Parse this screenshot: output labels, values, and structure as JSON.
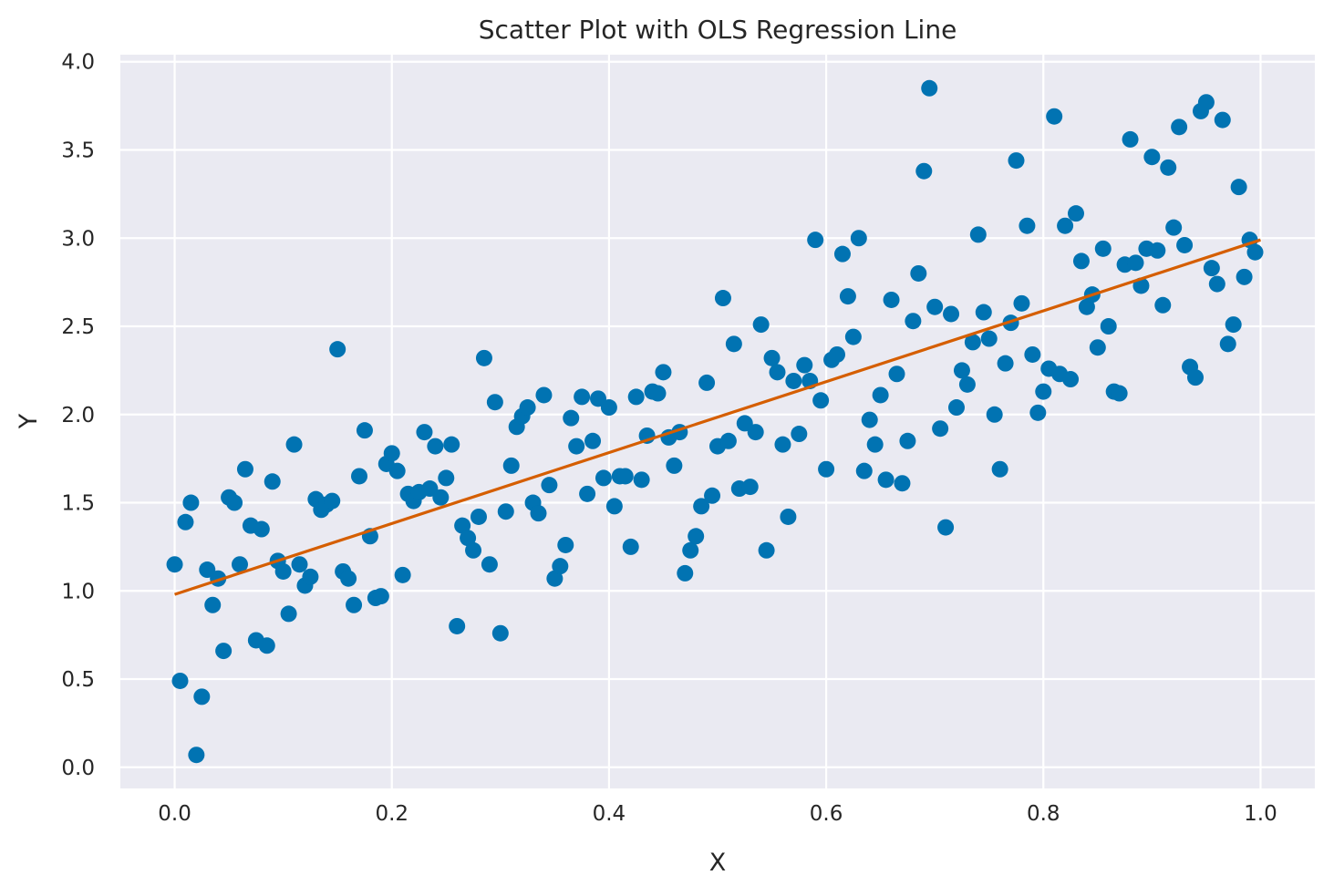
{
  "chart_data": {
    "type": "scatter",
    "title": "Scatter Plot with OLS Regression Line",
    "xlabel": "X",
    "ylabel": "Y",
    "xlim": [
      -0.05,
      1.05
    ],
    "ylim": [
      -0.12,
      4.04
    ],
    "xticks": [
      0.0,
      0.2,
      0.4,
      0.6,
      0.8,
      1.0
    ],
    "xtick_labels": [
      "0.0",
      "0.2",
      "0.4",
      "0.6",
      "0.8",
      "1.0"
    ],
    "yticks": [
      0.0,
      0.5,
      1.0,
      1.5,
      2.0,
      2.5,
      3.0,
      3.5,
      4.0
    ],
    "ytick_labels": [
      "0.0",
      "0.5",
      "1.0",
      "1.5",
      "2.0",
      "2.5",
      "3.0",
      "3.5",
      "4.0"
    ],
    "grid": true,
    "colors": {
      "points": "#0173b2",
      "line": "#d55e00",
      "background": "#eaeaf2",
      "grid": "#ffffff"
    },
    "points": [
      [
        0.0,
        1.15
      ],
      [
        0.005,
        0.49
      ],
      [
        0.01,
        1.39
      ],
      [
        0.015,
        1.5
      ],
      [
        0.02,
        0.07
      ],
      [
        0.025,
        0.4
      ],
      [
        0.03,
        1.12
      ],
      [
        0.035,
        0.92
      ],
      [
        0.04,
        1.07
      ],
      [
        0.045,
        0.66
      ],
      [
        0.05,
        1.53
      ],
      [
        0.055,
        1.5
      ],
      [
        0.06,
        1.15
      ],
      [
        0.065,
        1.69
      ],
      [
        0.07,
        1.37
      ],
      [
        0.075,
        0.72
      ],
      [
        0.08,
        1.35
      ],
      [
        0.085,
        0.69
      ],
      [
        0.09,
        1.62
      ],
      [
        0.095,
        1.17
      ],
      [
        0.1,
        1.11
      ],
      [
        0.105,
        0.87
      ],
      [
        0.11,
        1.83
      ],
      [
        0.115,
        1.15
      ],
      [
        0.12,
        1.03
      ],
      [
        0.125,
        1.08
      ],
      [
        0.13,
        1.52
      ],
      [
        0.135,
        1.46
      ],
      [
        0.14,
        1.49
      ],
      [
        0.145,
        1.51
      ],
      [
        0.15,
        2.37
      ],
      [
        0.155,
        1.11
      ],
      [
        0.16,
        1.07
      ],
      [
        0.165,
        0.92
      ],
      [
        0.17,
        1.65
      ],
      [
        0.175,
        1.91
      ],
      [
        0.18,
        1.31
      ],
      [
        0.185,
        0.96
      ],
      [
        0.19,
        0.97
      ],
      [
        0.195,
        1.72
      ],
      [
        0.2,
        1.78
      ],
      [
        0.205,
        1.68
      ],
      [
        0.21,
        1.09
      ],
      [
        0.215,
        1.55
      ],
      [
        0.22,
        1.51
      ],
      [
        0.225,
        1.56
      ],
      [
        0.23,
        1.9
      ],
      [
        0.235,
        1.58
      ],
      [
        0.24,
        1.82
      ],
      [
        0.245,
        1.53
      ],
      [
        0.25,
        1.64
      ],
      [
        0.255,
        1.83
      ],
      [
        0.26,
        0.8
      ],
      [
        0.265,
        1.37
      ],
      [
        0.27,
        1.3
      ],
      [
        0.275,
        1.23
      ],
      [
        0.28,
        1.42
      ],
      [
        0.285,
        2.32
      ],
      [
        0.29,
        1.15
      ],
      [
        0.295,
        2.07
      ],
      [
        0.3,
        0.76
      ],
      [
        0.305,
        1.45
      ],
      [
        0.31,
        1.71
      ],
      [
        0.315,
        1.93
      ],
      [
        0.32,
        1.99
      ],
      [
        0.325,
        2.04
      ],
      [
        0.33,
        1.5
      ],
      [
        0.335,
        1.44
      ],
      [
        0.34,
        2.11
      ],
      [
        0.345,
        1.6
      ],
      [
        0.35,
        1.07
      ],
      [
        0.355,
        1.14
      ],
      [
        0.36,
        1.26
      ],
      [
        0.365,
        1.98
      ],
      [
        0.37,
        1.82
      ],
      [
        0.375,
        2.1
      ],
      [
        0.38,
        1.55
      ],
      [
        0.385,
        1.85
      ],
      [
        0.39,
        2.09
      ],
      [
        0.395,
        1.64
      ],
      [
        0.4,
        2.04
      ],
      [
        0.405,
        1.48
      ],
      [
        0.41,
        1.65
      ],
      [
        0.415,
        1.65
      ],
      [
        0.42,
        1.25
      ],
      [
        0.425,
        2.1
      ],
      [
        0.43,
        1.63
      ],
      [
        0.435,
        1.88
      ],
      [
        0.44,
        2.13
      ],
      [
        0.445,
        2.12
      ],
      [
        0.45,
        2.24
      ],
      [
        0.455,
        1.87
      ],
      [
        0.46,
        1.71
      ],
      [
        0.465,
        1.9
      ],
      [
        0.47,
        1.1
      ],
      [
        0.475,
        1.23
      ],
      [
        0.48,
        1.31
      ],
      [
        0.485,
        1.48
      ],
      [
        0.49,
        2.18
      ],
      [
        0.495,
        1.54
      ],
      [
        0.5,
        1.82
      ],
      [
        0.505,
        2.66
      ],
      [
        0.51,
        1.85
      ],
      [
        0.515,
        2.4
      ],
      [
        0.52,
        1.58
      ],
      [
        0.525,
        1.95
      ],
      [
        0.53,
        1.59
      ],
      [
        0.535,
        1.9
      ],
      [
        0.54,
        2.51
      ],
      [
        0.545,
        1.23
      ],
      [
        0.55,
        2.32
      ],
      [
        0.555,
        2.24
      ],
      [
        0.56,
        1.83
      ],
      [
        0.565,
        1.42
      ],
      [
        0.57,
        2.19
      ],
      [
        0.575,
        1.89
      ],
      [
        0.58,
        2.28
      ],
      [
        0.585,
        2.19
      ],
      [
        0.59,
        2.99
      ],
      [
        0.595,
        2.08
      ],
      [
        0.6,
        1.69
      ],
      [
        0.605,
        2.31
      ],
      [
        0.61,
        2.34
      ],
      [
        0.615,
        2.91
      ],
      [
        0.62,
        2.67
      ],
      [
        0.625,
        2.44
      ],
      [
        0.63,
        3.0
      ],
      [
        0.635,
        1.68
      ],
      [
        0.64,
        1.97
      ],
      [
        0.645,
        1.83
      ],
      [
        0.65,
        2.11
      ],
      [
        0.655,
        1.63
      ],
      [
        0.66,
        2.65
      ],
      [
        0.665,
        2.23
      ],
      [
        0.67,
        1.61
      ],
      [
        0.675,
        1.85
      ],
      [
        0.68,
        2.53
      ],
      [
        0.685,
        2.8
      ],
      [
        0.69,
        3.38
      ],
      [
        0.695,
        3.85
      ],
      [
        0.7,
        2.61
      ],
      [
        0.705,
        1.92
      ],
      [
        0.71,
        1.36
      ],
      [
        0.715,
        2.57
      ],
      [
        0.72,
        2.04
      ],
      [
        0.725,
        2.25
      ],
      [
        0.73,
        2.17
      ],
      [
        0.735,
        2.41
      ],
      [
        0.74,
        3.02
      ],
      [
        0.745,
        2.58
      ],
      [
        0.75,
        2.43
      ],
      [
        0.755,
        2.0
      ],
      [
        0.76,
        1.69
      ],
      [
        0.765,
        2.29
      ],
      [
        0.77,
        2.52
      ],
      [
        0.775,
        3.44
      ],
      [
        0.78,
        2.63
      ],
      [
        0.785,
        3.07
      ],
      [
        0.79,
        2.34
      ],
      [
        0.795,
        2.01
      ],
      [
        0.8,
        2.13
      ],
      [
        0.805,
        2.26
      ],
      [
        0.81,
        3.69
      ],
      [
        0.815,
        2.23
      ],
      [
        0.82,
        3.07
      ],
      [
        0.825,
        2.2
      ],
      [
        0.83,
        3.14
      ],
      [
        0.835,
        2.87
      ],
      [
        0.84,
        2.61
      ],
      [
        0.845,
        2.68
      ],
      [
        0.85,
        2.38
      ],
      [
        0.855,
        2.94
      ],
      [
        0.86,
        2.5
      ],
      [
        0.865,
        2.13
      ],
      [
        0.87,
        2.12
      ],
      [
        0.875,
        2.85
      ],
      [
        0.88,
        3.56
      ],
      [
        0.885,
        2.86
      ],
      [
        0.89,
        2.73
      ],
      [
        0.895,
        2.94
      ],
      [
        0.9,
        3.46
      ],
      [
        0.905,
        2.93
      ],
      [
        0.91,
        2.62
      ],
      [
        0.915,
        3.4
      ],
      [
        0.92,
        3.06
      ],
      [
        0.925,
        3.63
      ],
      [
        0.93,
        2.96
      ],
      [
        0.935,
        2.27
      ],
      [
        0.94,
        2.21
      ],
      [
        0.945,
        3.72
      ],
      [
        0.95,
        3.77
      ],
      [
        0.955,
        2.83
      ],
      [
        0.96,
        2.74
      ],
      [
        0.965,
        3.67
      ],
      [
        0.97,
        2.4
      ],
      [
        0.975,
        2.51
      ],
      [
        0.98,
        3.29
      ],
      [
        0.985,
        2.78
      ],
      [
        0.99,
        2.99
      ],
      [
        0.995,
        2.92
      ]
    ],
    "regression_line": {
      "x": [
        0.0,
        1.0
      ],
      "y": [
        0.98,
        2.99
      ]
    }
  }
}
